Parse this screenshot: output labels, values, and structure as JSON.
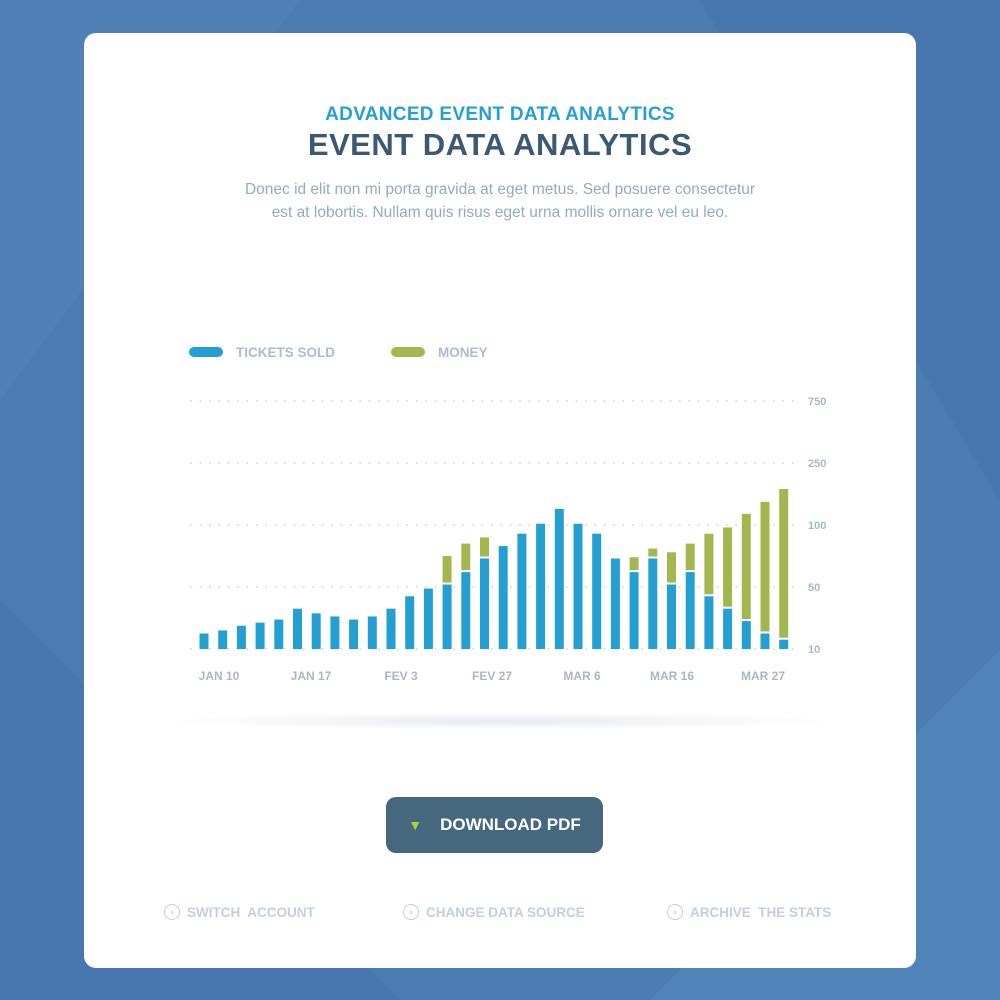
{
  "header": {
    "subtitle": "ADVANCED EVENT DATA ANALYTICS",
    "title": "EVENT DATA ANALYTICS",
    "description": "Donec id elit non mi porta gravida at eget metus. Sed posuere consectetur est at lobortis. Nullam quis risus eget urna mollis ornare vel eu leo."
  },
  "colors": {
    "background": "#4a7cb2",
    "tickets": "#239fd2",
    "money": "#a2b84f",
    "button": "#47677f",
    "download_arrow": "#a8d33a"
  },
  "chart_data": {
    "type": "bar",
    "stacked": true,
    "legend": [
      "TICKETS SOLD",
      "MONEY"
    ],
    "legend_position": "top-left",
    "y_ticks": [
      10,
      50,
      100,
      250,
      750
    ],
    "y_scale": "nonlinear (equally spaced ticks)",
    "ylim": [
      10,
      750
    ],
    "grid": "dotted horizontal",
    "x_tick_labels": [
      "JAN 10",
      "JAN 17",
      "FEV 3",
      "FEV 27",
      "MAR 6",
      "MAR 16",
      "MAR 27"
    ],
    "series": [
      {
        "name": "TICKETS SOLD",
        "values": [
          20,
          22,
          25,
          27,
          29,
          36,
          33,
          31,
          29,
          31,
          36,
          44,
          49,
          52,
          62,
          73,
          83,
          93,
          103,
          139,
          103,
          93,
          73,
          62,
          73,
          52,
          62,
          44,
          36,
          28,
          20,
          16
        ]
      },
      {
        "name": "MONEY",
        "values": [
          0,
          0,
          0,
          0,
          0,
          0,
          0,
          0,
          0,
          0,
          0,
          0,
          0,
          23,
          23,
          17,
          0,
          0,
          0,
          0,
          0,
          0,
          0,
          12,
          8,
          26,
          23,
          49,
          62,
          99,
          136,
          171
        ]
      }
    ]
  },
  "actions": {
    "download": "DOWNLOAD PDF",
    "switch_account": "SWITCH  ACCOUNT",
    "change_source": "CHANGE DATA SOURCE",
    "archive": "ARCHIVE  THE STATS"
  }
}
